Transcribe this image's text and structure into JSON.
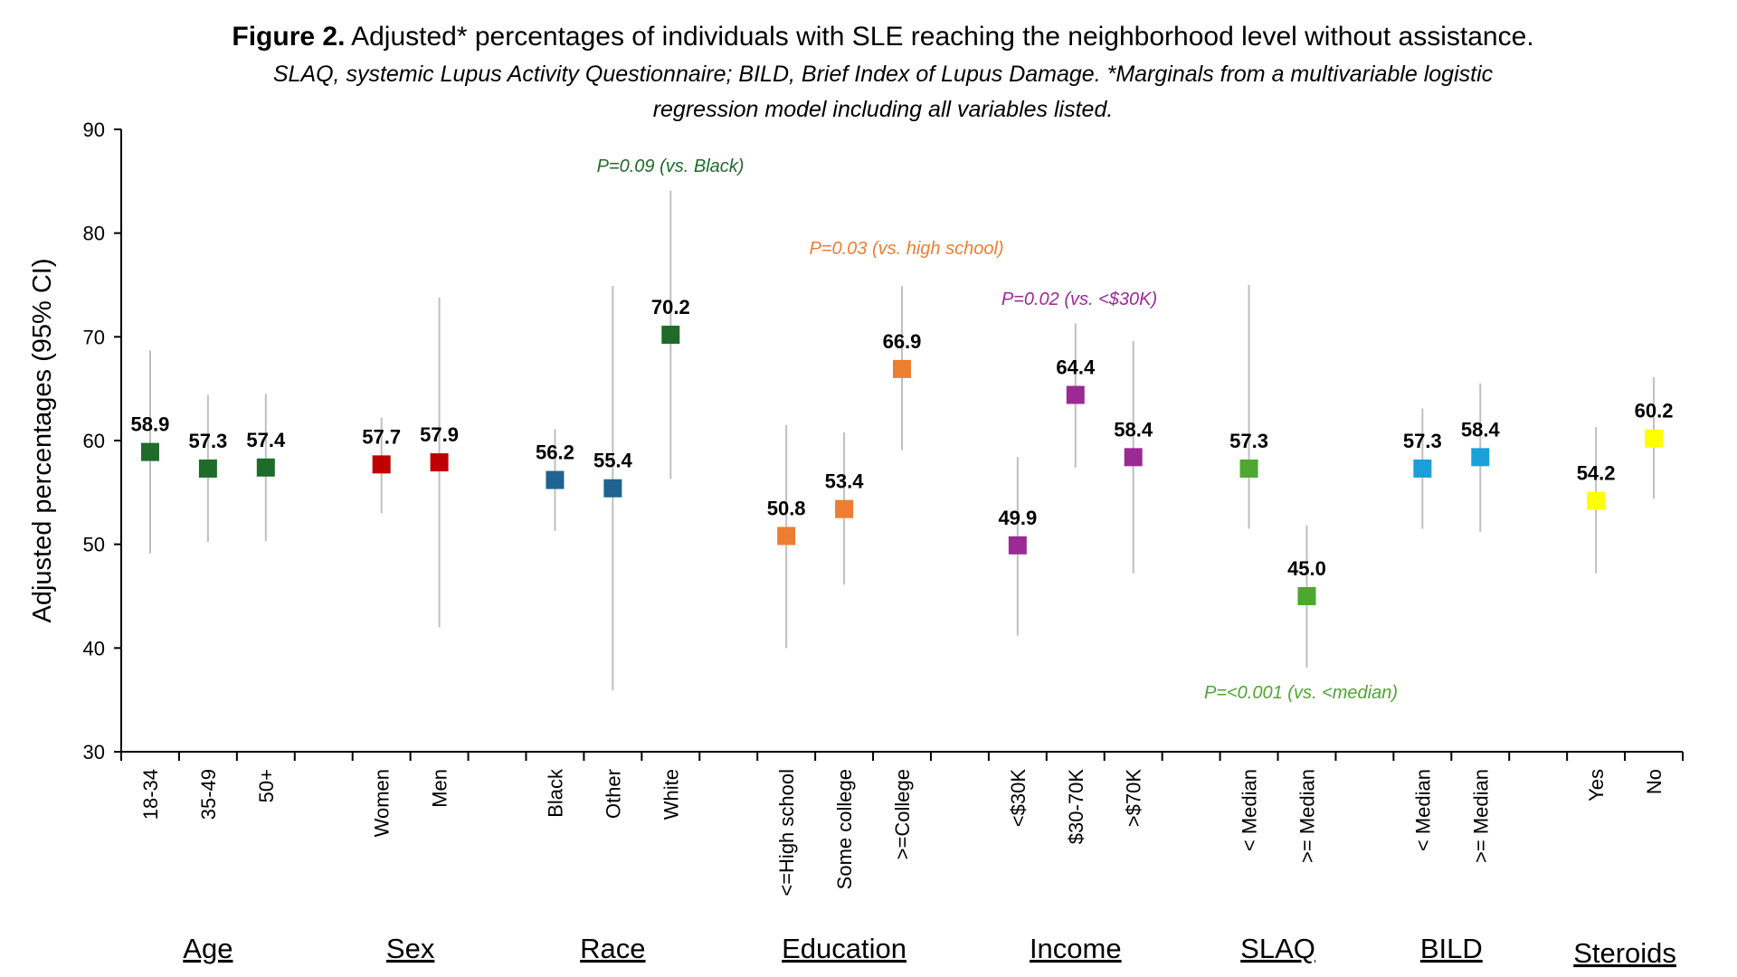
{
  "title": {
    "bold": "Figure 2.",
    "rest": " Adjusted* percentages of individuals with SLE reaching the neighborhood level without assistance."
  },
  "subtitle": [
    "SLAQ, systemic Lupus Activity Questionnaire; BILD, Brief Index of Lupus Damage. *Marginals from a multivariable logistic",
    "regression model including all variables listed."
  ],
  "chart_data": {
    "type": "scatter",
    "ylabel": "Adjusted percentages (95% CI)",
    "xlabel": "",
    "ylim": [
      30,
      90
    ],
    "yticks": [
      30,
      40,
      50,
      60,
      70,
      80,
      90
    ],
    "grid": false,
    "groups": [
      {
        "name": "Age",
        "color": "#1e6b2a",
        "points": [
          {
            "label": "18-34",
            "value": 58.9,
            "lo": 49.1,
            "hi": 68.7
          },
          {
            "label": "35-49",
            "value": 57.3,
            "lo": 50.2,
            "hi": 64.4
          },
          {
            "label": "50+",
            "value": 57.4,
            "lo": 50.3,
            "hi": 64.5
          }
        ]
      },
      {
        "name": "Sex",
        "color": "#c00000",
        "points": [
          {
            "label": "Women",
            "value": 57.7,
            "lo": 53.0,
            "hi": 62.2
          },
          {
            "label": "Men",
            "value": 57.9,
            "lo": 42.0,
            "hi": 73.8
          }
        ]
      },
      {
        "name": "Race",
        "color": "#1f6491",
        "points": [
          {
            "label": "Black",
            "value": 56.2,
            "lo": 51.3,
            "hi": 61.1
          },
          {
            "label": "Other",
            "value": 55.4,
            "lo": 35.9,
            "hi": 74.9
          },
          {
            "label": "White",
            "value": 70.2,
            "lo": 56.3,
            "hi": 84.1,
            "color": "#1e6b2a"
          }
        ]
      },
      {
        "name": "Education",
        "color": "#ed7d31",
        "points": [
          {
            "label": "<=High school",
            "value": 50.8,
            "lo": 40.0,
            "hi": 61.5
          },
          {
            "label": "Some college",
            "value": 53.4,
            "lo": 46.1,
            "hi": 60.8
          },
          {
            "label": ">=College",
            "value": 66.9,
            "lo": 59.1,
            "hi": 74.9
          }
        ]
      },
      {
        "name": "Income",
        "color": "#9b2a94",
        "points": [
          {
            "label": "<$30K",
            "value": 49.9,
            "lo": 41.2,
            "hi": 58.4
          },
          {
            "label": "$30-70K",
            "value": 64.4,
            "lo": 57.4,
            "hi": 71.3
          },
          {
            "label": ">$70K",
            "value": 58.4,
            "lo": 47.2,
            "hi": 69.6
          }
        ]
      },
      {
        "name": "SLAQ",
        "color": "#4ea72e",
        "points": [
          {
            "label": "< Median",
            "value": 57.3,
            "lo": 51.5,
            "hi": 75.0
          },
          {
            "label": ">= Median",
            "value": 45.0,
            "lo": 38.1,
            "hi": 51.8
          }
        ]
      },
      {
        "name": "BILD",
        "color": "#1aa0d8",
        "points": [
          {
            "label": "< Median",
            "value": 57.3,
            "lo": 51.5,
            "hi": 63.1
          },
          {
            "label": ">= Median",
            "value": 58.4,
            "lo": 51.2,
            "hi": 65.5
          }
        ]
      },
      {
        "name": "Steroids",
        "color": "#ffff00",
        "points": [
          {
            "label": "Yes",
            "value": 54.2,
            "lo": 47.2,
            "hi": 61.3
          },
          {
            "label": "No",
            "value": 60.2,
            "lo": 54.4,
            "hi": 66.1
          }
        ]
      }
    ],
    "annotations": [
      {
        "text": "P=0.09 (vs. Black)",
        "color": "#1e6b2a"
      },
      {
        "text": "P=0.03 (vs. high school)",
        "color": "#ed7d31"
      },
      {
        "text": "P=0.02 (vs. <$30K)",
        "color": "#9b2a94"
      },
      {
        "text": "P=<0.001 (vs. <median)",
        "color": "#4ea72e"
      }
    ]
  }
}
